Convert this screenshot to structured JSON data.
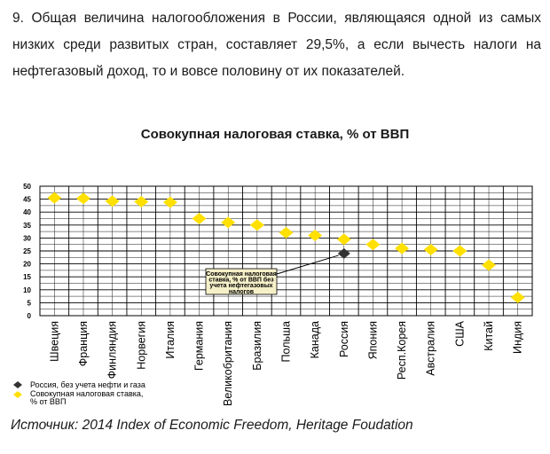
{
  "intro_text": "9. Общая величина налогообложения в России, являющаяся одной из самых низких среди развитых стран, составляет 29,5%, а если вычесть налоги на нефтегазовый доход, то и вовсе половину от их показателей.",
  "source": "Источник: 2014 Index of Economic Freedom, Heritage Foudation",
  "colors": {
    "diamond_yellow": "#FFE000",
    "diamond_black": "#333333",
    "annotation_fill": "#F5F0C8"
  },
  "chart_data": {
    "type": "scatter",
    "title": "Совокупная налоговая ставка, % от ВВП",
    "categories": [
      "Швеция",
      "Франция",
      "Финляндия",
      "Норвегия",
      "Италия",
      "Германия",
      "Великобритания",
      "Бразилия",
      "Польша",
      "Канада",
      "Россия",
      "Япония",
      "Респ.Корея",
      "Австралия",
      "США",
      "Китай",
      "Индия"
    ],
    "yticks": [
      0,
      5,
      10,
      15,
      20,
      25,
      30,
      35,
      40,
      45,
      50
    ],
    "ylim": [
      0,
      50
    ],
    "grid": true,
    "series": [
      {
        "name": "Совокупная налоговая ставка, % от ВВП",
        "marker": "diamond",
        "color": "#FFE000",
        "values": [
          45.5,
          45.3,
          44.2,
          44.0,
          43.8,
          37.5,
          36.0,
          35.0,
          32.0,
          31.0,
          29.5,
          27.5,
          26.0,
          25.5,
          25.0,
          19.5,
          7.0
        ]
      },
      {
        "name": "Россия, без учета нефти и газа",
        "marker": "diamond",
        "color": "#333333",
        "values": [
          null,
          null,
          null,
          null,
          null,
          null,
          null,
          null,
          null,
          null,
          24.0,
          null,
          null,
          null,
          null,
          null,
          null
        ]
      }
    ],
    "annotation": "Совокупная налоговая ставка, % от ВВП без учета нефтегазовых налогов",
    "annotation_lines": [
      "Совокупная налоговая",
      "ставка, % от ВВП без",
      "учета нефтегазовых",
      "налогов"
    ],
    "legend": [
      {
        "label": "Россия, без учета нефти и газа",
        "marker": "black-diamond"
      },
      {
        "label_lines": [
          "Совокупная налоговая ставка,",
          "% от ВВП"
        ],
        "marker": "yellow-diamond"
      }
    ],
    "legend_position": "bottom-left"
  }
}
